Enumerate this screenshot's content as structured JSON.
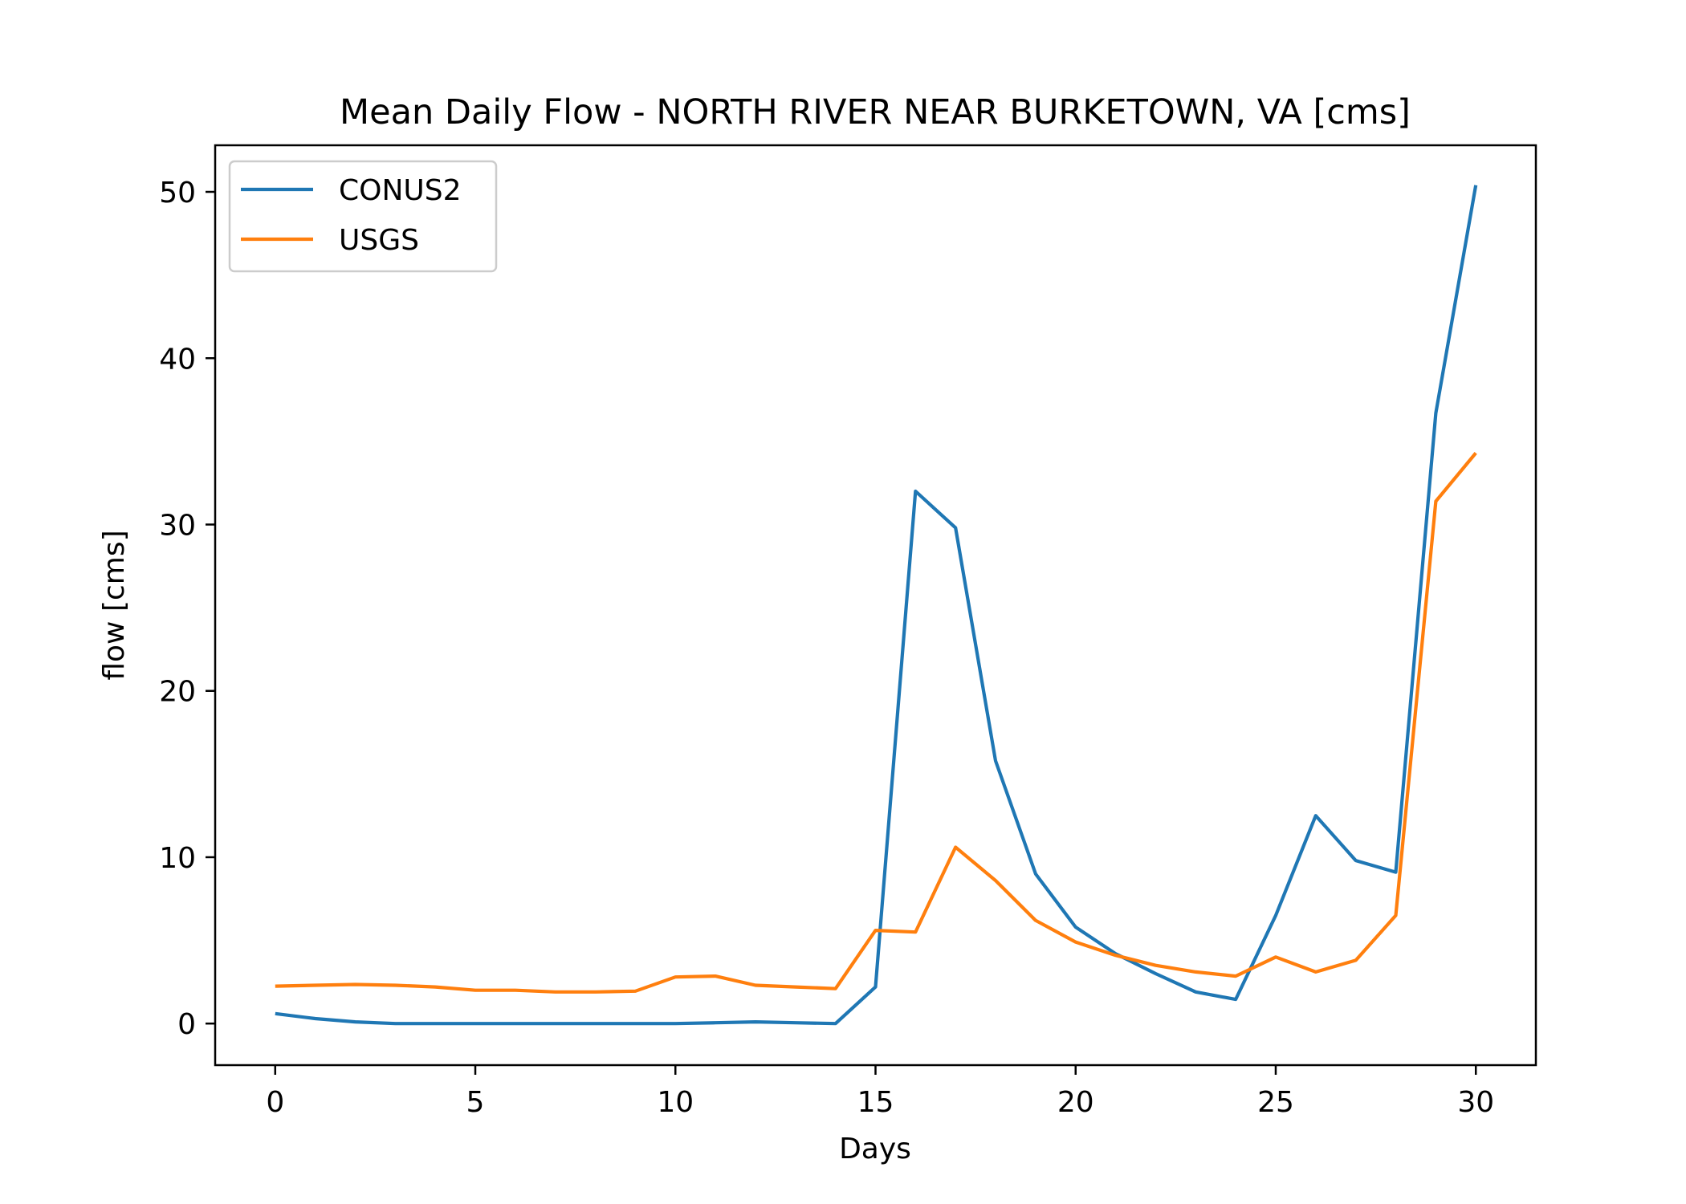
{
  "chart_data": {
    "type": "line",
    "title": "Mean Daily Flow - NORTH RIVER NEAR BURKETOWN, VA [cms]",
    "xlabel": "Days",
    "ylabel": "flow [cms]",
    "xlim": [
      -1.5,
      31.5
    ],
    "ylim": [
      -2.5,
      52.8
    ],
    "xticks": [
      0,
      5,
      10,
      15,
      20,
      25,
      30
    ],
    "yticks": [
      0,
      10,
      20,
      30,
      40,
      50
    ],
    "grid": false,
    "legend_position": "upper-left",
    "x": [
      0,
      1,
      2,
      3,
      4,
      5,
      6,
      7,
      8,
      9,
      10,
      11,
      12,
      13,
      14,
      15,
      16,
      17,
      18,
      19,
      20,
      21,
      22,
      23,
      24,
      25,
      26,
      27,
      28,
      29,
      30
    ],
    "series": [
      {
        "name": "CONUS2",
        "color": "#1f77b4",
        "values": [
          0.6,
          0.3,
          0.1,
          0.0,
          0.0,
          0.0,
          0.0,
          0.0,
          0.0,
          0.0,
          0.0,
          0.05,
          0.1,
          0.05,
          0.0,
          2.2,
          32.0,
          29.8,
          15.8,
          9.0,
          5.8,
          4.2,
          3.0,
          1.9,
          1.45,
          6.5,
          12.5,
          9.8,
          9.1,
          36.7,
          50.4
        ]
      },
      {
        "name": "USGS",
        "color": "#ff7f0e",
        "values": [
          2.25,
          2.3,
          2.35,
          2.3,
          2.2,
          2.0,
          2.0,
          1.9,
          1.9,
          1.95,
          2.8,
          2.85,
          2.3,
          2.2,
          2.1,
          5.6,
          5.5,
          10.6,
          8.6,
          6.2,
          4.9,
          4.1,
          3.5,
          3.1,
          2.85,
          4.0,
          3.1,
          3.8,
          6.5,
          31.4,
          34.3
        ]
      }
    ]
  }
}
